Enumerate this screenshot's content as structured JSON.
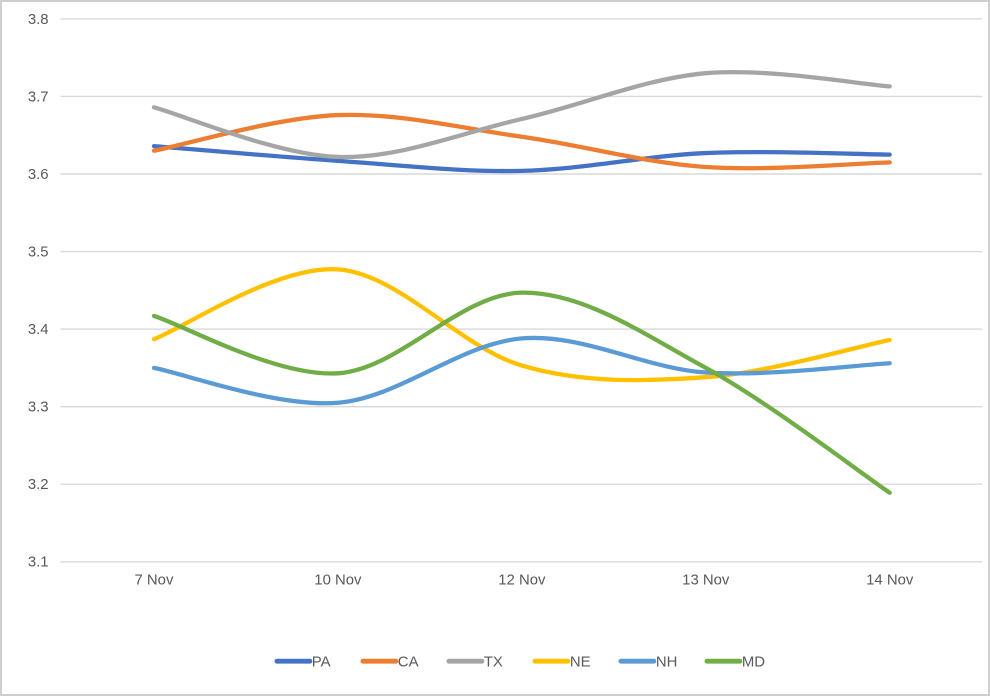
{
  "chart_data": {
    "type": "line",
    "title": "",
    "xlabel": "",
    "ylabel": "",
    "categories": [
      "7 Nov",
      "10 Nov",
      "12 Nov",
      "13 Nov",
      "14 Nov"
    ],
    "series": [
      {
        "name": "PA",
        "color": "#4472C4",
        "values": [
          3.636,
          3.617,
          3.604,
          3.627,
          3.625
        ]
      },
      {
        "name": "CA",
        "color": "#ED7D31",
        "values": [
          3.63,
          3.676,
          3.648,
          3.609,
          3.615
        ]
      },
      {
        "name": "TX",
        "color": "#A5A5A5",
        "values": [
          3.686,
          3.622,
          3.671,
          3.73,
          3.713
        ]
      },
      {
        "name": "NE",
        "color": "#FFC000",
        "values": [
          3.387,
          3.477,
          3.353,
          3.338,
          3.386
        ]
      },
      {
        "name": "NH",
        "color": "#5B9BD5",
        "values": [
          3.35,
          3.305,
          3.388,
          3.344,
          3.356
        ]
      },
      {
        "name": "MD",
        "color": "#70AD47",
        "values": [
          3.417,
          3.343,
          3.447,
          3.35,
          3.189
        ]
      }
    ],
    "ylim": [
      3.1,
      3.8
    ],
    "ytick_step": 0.1,
    "yticks": [
      "3.1",
      "3.2",
      "3.3",
      "3.4",
      "3.5",
      "3.6",
      "3.7",
      "3.8"
    ],
    "grid": true,
    "smooth": true,
    "legend_position": "bottom",
    "legend": [
      "PA",
      "CA",
      "TX",
      "NE",
      "NH",
      "MD"
    ]
  },
  "style": {
    "grid_color": "#D9D9D9",
    "axis_text_color": "#595959",
    "legend_text_color": "#595959",
    "frame_border_color": "#D0CECE",
    "background": "#FFFFFF"
  }
}
